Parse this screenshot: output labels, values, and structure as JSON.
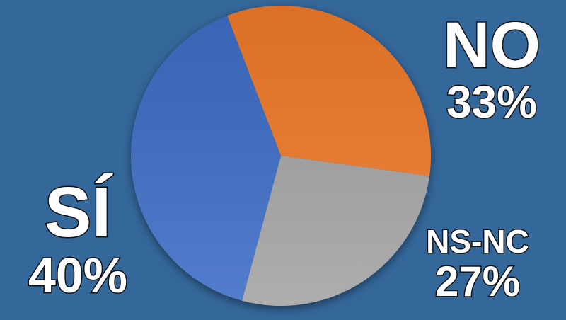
{
  "chart_data": {
    "type": "pie",
    "slices": [
      {
        "label": "NO",
        "value": 33,
        "value_label": "33%",
        "color": "#f07a2a"
      },
      {
        "label": "NS-NC",
        "value": 27,
        "value_label": "27%",
        "color": "#a3a3a3"
      },
      {
        "label": "SÍ",
        "value": 40,
        "value_label": "40%",
        "color": "#3d6dc6"
      }
    ],
    "background": "#34679a"
  }
}
